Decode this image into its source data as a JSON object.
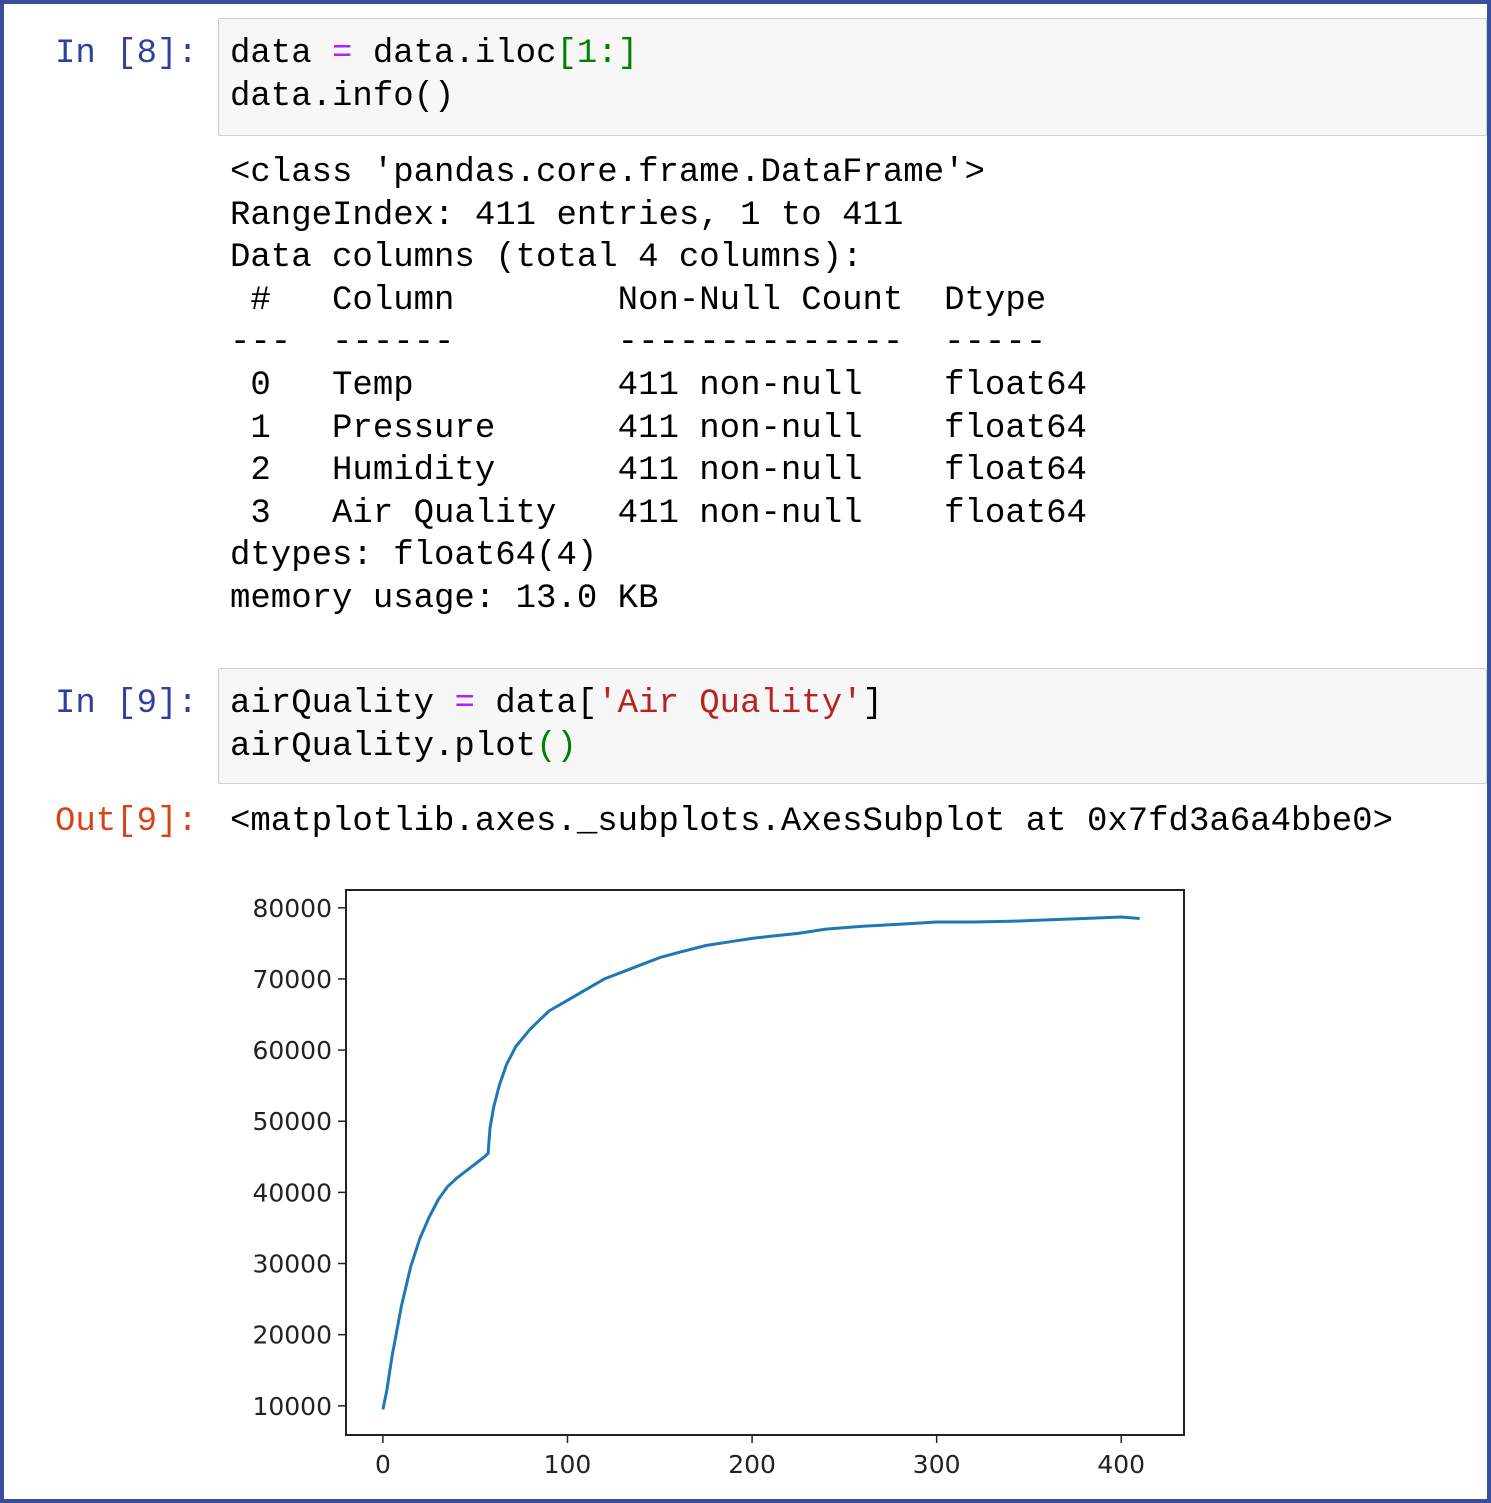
{
  "cells": [
    {
      "prompt": "In [8]:",
      "input": [
        [
          {
            "text": "data ",
            "color": "#000000"
          },
          {
            "text": "=",
            "color": "#aa22ff"
          },
          {
            "text": " data.iloc",
            "color": "#000000"
          },
          {
            "text": "[1:]",
            "color": "#008000"
          }
        ],
        [
          {
            "text": "data.info()",
            "color": "#000000"
          }
        ]
      ],
      "output": [
        "<class 'pandas.core.frame.DataFrame'>",
        "RangeIndex: 411 entries, 1 to 411",
        "Data columns (total 4 columns):",
        " #   Column        Non-Null Count  Dtype  ",
        "---  ------        --------------  -----  ",
        " 0   Temp          411 non-null    float64",
        " 1   Pressure      411 non-null    float64",
        " 2   Humidity      411 non-null    float64",
        " 3   Air Quality   411 non-null    float64",
        "dtypes: float64(4)",
        "memory usage: 13.0 KB"
      ]
    },
    {
      "prompt": "In [9]:",
      "input": [
        [
          {
            "text": "airQuality ",
            "color": "#000000"
          },
          {
            "text": "=",
            "color": "#aa22ff"
          },
          {
            "text": " data[",
            "color": "#000000"
          },
          {
            "text": "'Air Quality'",
            "color": "#ba2121"
          },
          {
            "text": "]",
            "color": "#000000"
          }
        ],
        [
          {
            "text": "airQuality.plot",
            "color": "#000000"
          },
          {
            "text": "()",
            "color": "#008000"
          }
        ]
      ],
      "out_prompt": "Out[9]:",
      "output": [
        "<matplotlib.axes._subplots.AxesSubplot at 0x7fd3a6a4bbe0>"
      ]
    }
  ],
  "chart_data": {
    "type": "line",
    "color": "#1f77b4",
    "x": [
      0,
      2,
      5,
      10,
      15,
      20,
      25,
      30,
      35,
      40,
      45,
      50,
      55,
      57,
      58,
      60,
      63,
      67,
      72,
      80,
      90,
      100,
      110,
      120,
      130,
      140,
      150,
      160,
      175,
      190,
      200,
      210,
      225,
      240,
      260,
      280,
      300,
      320,
      340,
      360,
      380,
      400,
      410
    ],
    "values": [
      9500,
      12000,
      17000,
      24000,
      29500,
      33500,
      36500,
      39000,
      40800,
      42000,
      43000,
      44000,
      45000,
      45500,
      49000,
      52000,
      55000,
      58000,
      60500,
      63000,
      65500,
      67000,
      68500,
      70000,
      71000,
      72000,
      73000,
      73700,
      74700,
      75300,
      75700,
      76000,
      76400,
      77000,
      77400,
      77700,
      78000,
      78000,
      78100,
      78300,
      78500,
      78700,
      78500
    ],
    "xlim": [
      -20,
      434
    ],
    "ylim": [
      5900,
      82500
    ],
    "xticks": [
      0,
      100,
      200,
      300,
      400
    ],
    "yticks": [
      10000,
      20000,
      30000,
      40000,
      50000,
      60000,
      70000,
      80000
    ]
  }
}
